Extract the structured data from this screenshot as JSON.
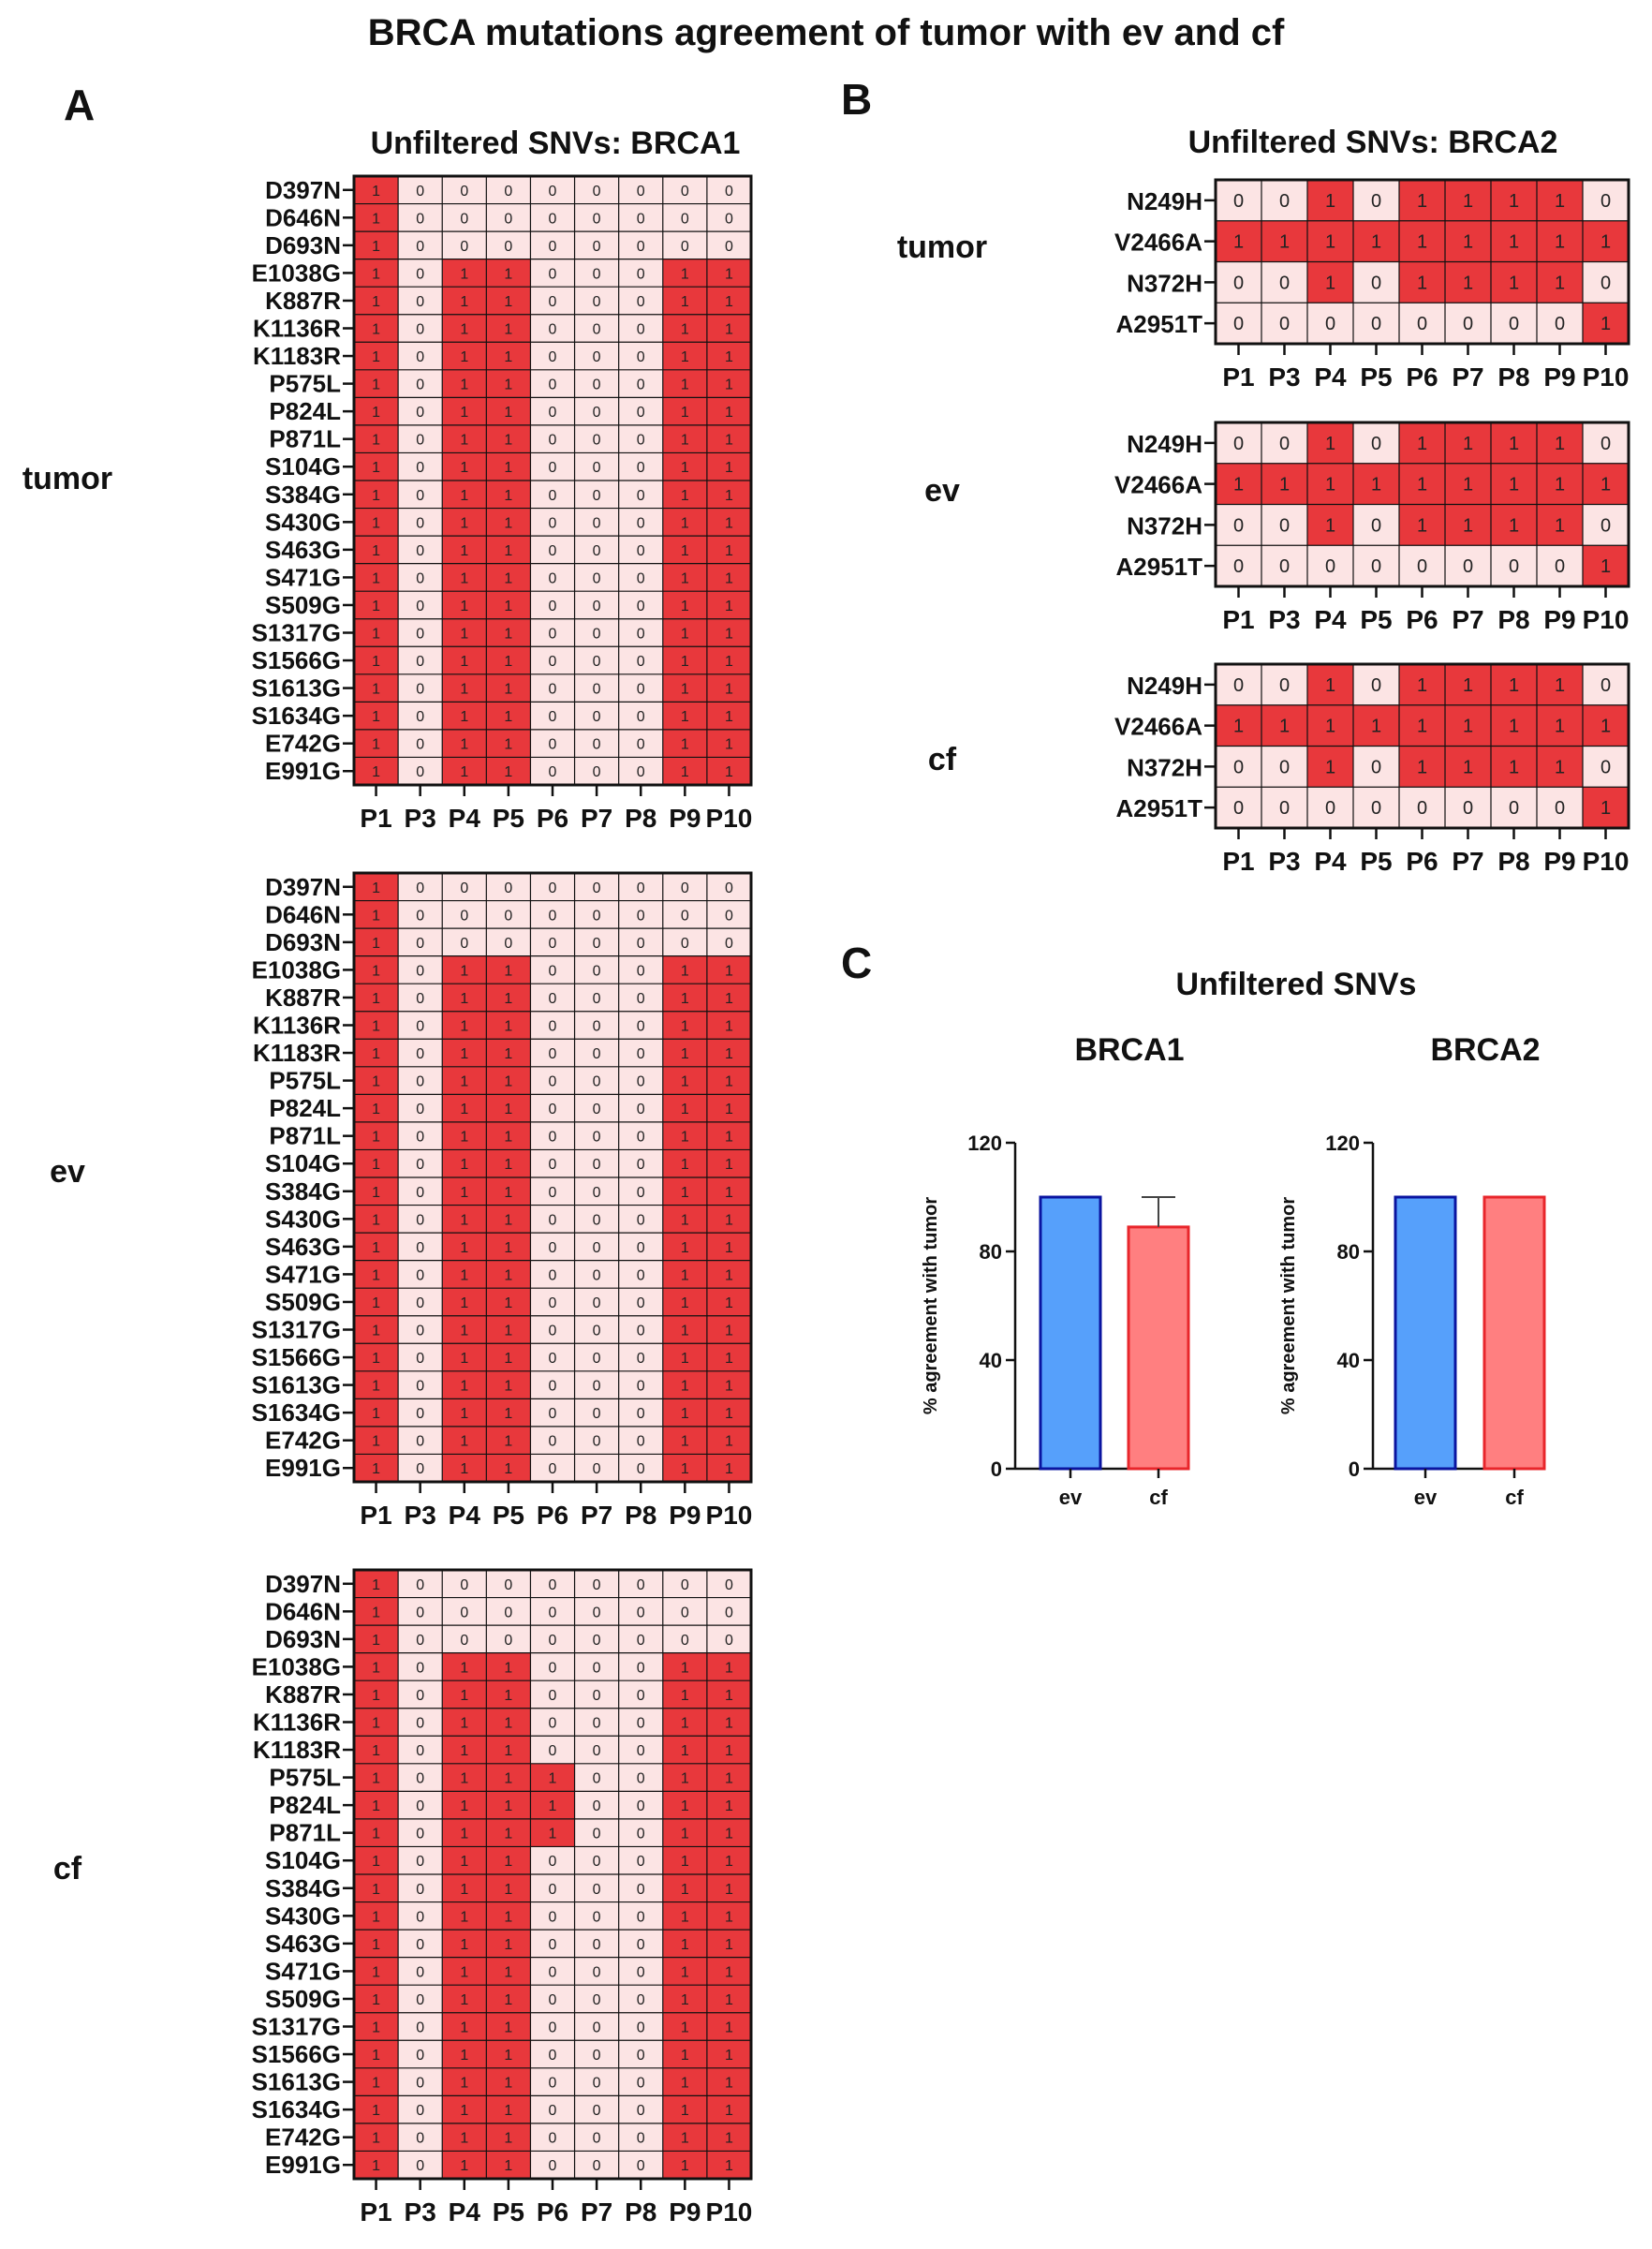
{
  "figure": {
    "title": "BRCA mutations agreement of tumor with ev and cf",
    "panel_labels": [
      "A",
      "B",
      "C"
    ],
    "group_labels": [
      "tumor",
      "ev",
      "cf"
    ]
  },
  "chart_data": [
    {
      "type": "heatmap",
      "panel": "A",
      "title": "Unfiltered SNVs: BRCA1",
      "groups": [
        "tumor",
        "ev",
        "cf"
      ],
      "rows": [
        "D397N",
        "D646N",
        "D693N",
        "E1038G",
        "K887R",
        "K1136R",
        "K1183R",
        "P575L",
        "P824L",
        "P871L",
        "S104G",
        "S384G",
        "S430G",
        "S463G",
        "S471G",
        "S509G",
        "S1317G",
        "S1566G",
        "S1613G",
        "S1634G",
        "E742G",
        "E991G"
      ],
      "columns": [
        "P1",
        "P3",
        "P4",
        "P5",
        "P6",
        "P7",
        "P8",
        "P9",
        "P10"
      ],
      "values": {
        "tumor": [
          [
            1,
            0,
            0,
            0,
            0,
            0,
            0,
            0,
            0
          ],
          [
            1,
            0,
            0,
            0,
            0,
            0,
            0,
            0,
            0
          ],
          [
            1,
            0,
            0,
            0,
            0,
            0,
            0,
            0,
            0
          ],
          [
            1,
            0,
            1,
            1,
            0,
            0,
            0,
            1,
            1
          ],
          [
            1,
            0,
            1,
            1,
            0,
            0,
            0,
            1,
            1
          ],
          [
            1,
            0,
            1,
            1,
            0,
            0,
            0,
            1,
            1
          ],
          [
            1,
            0,
            1,
            1,
            0,
            0,
            0,
            1,
            1
          ],
          [
            1,
            0,
            1,
            1,
            0,
            0,
            0,
            1,
            1
          ],
          [
            1,
            0,
            1,
            1,
            0,
            0,
            0,
            1,
            1
          ],
          [
            1,
            0,
            1,
            1,
            0,
            0,
            0,
            1,
            1
          ],
          [
            1,
            0,
            1,
            1,
            0,
            0,
            0,
            1,
            1
          ],
          [
            1,
            0,
            1,
            1,
            0,
            0,
            0,
            1,
            1
          ],
          [
            1,
            0,
            1,
            1,
            0,
            0,
            0,
            1,
            1
          ],
          [
            1,
            0,
            1,
            1,
            0,
            0,
            0,
            1,
            1
          ],
          [
            1,
            0,
            1,
            1,
            0,
            0,
            0,
            1,
            1
          ],
          [
            1,
            0,
            1,
            1,
            0,
            0,
            0,
            1,
            1
          ],
          [
            1,
            0,
            1,
            1,
            0,
            0,
            0,
            1,
            1
          ],
          [
            1,
            0,
            1,
            1,
            0,
            0,
            0,
            1,
            1
          ],
          [
            1,
            0,
            1,
            1,
            0,
            0,
            0,
            1,
            1
          ],
          [
            1,
            0,
            1,
            1,
            0,
            0,
            0,
            1,
            1
          ],
          [
            1,
            0,
            1,
            1,
            0,
            0,
            0,
            1,
            1
          ],
          [
            1,
            0,
            1,
            1,
            0,
            0,
            0,
            1,
            1
          ]
        ],
        "ev": [
          [
            1,
            0,
            0,
            0,
            0,
            0,
            0,
            0,
            0
          ],
          [
            1,
            0,
            0,
            0,
            0,
            0,
            0,
            0,
            0
          ],
          [
            1,
            0,
            0,
            0,
            0,
            0,
            0,
            0,
            0
          ],
          [
            1,
            0,
            1,
            1,
            0,
            0,
            0,
            1,
            1
          ],
          [
            1,
            0,
            1,
            1,
            0,
            0,
            0,
            1,
            1
          ],
          [
            1,
            0,
            1,
            1,
            0,
            0,
            0,
            1,
            1
          ],
          [
            1,
            0,
            1,
            1,
            0,
            0,
            0,
            1,
            1
          ],
          [
            1,
            0,
            1,
            1,
            0,
            0,
            0,
            1,
            1
          ],
          [
            1,
            0,
            1,
            1,
            0,
            0,
            0,
            1,
            1
          ],
          [
            1,
            0,
            1,
            1,
            0,
            0,
            0,
            1,
            1
          ],
          [
            1,
            0,
            1,
            1,
            0,
            0,
            0,
            1,
            1
          ],
          [
            1,
            0,
            1,
            1,
            0,
            0,
            0,
            1,
            1
          ],
          [
            1,
            0,
            1,
            1,
            0,
            0,
            0,
            1,
            1
          ],
          [
            1,
            0,
            1,
            1,
            0,
            0,
            0,
            1,
            1
          ],
          [
            1,
            0,
            1,
            1,
            0,
            0,
            0,
            1,
            1
          ],
          [
            1,
            0,
            1,
            1,
            0,
            0,
            0,
            1,
            1
          ],
          [
            1,
            0,
            1,
            1,
            0,
            0,
            0,
            1,
            1
          ],
          [
            1,
            0,
            1,
            1,
            0,
            0,
            0,
            1,
            1
          ],
          [
            1,
            0,
            1,
            1,
            0,
            0,
            0,
            1,
            1
          ],
          [
            1,
            0,
            1,
            1,
            0,
            0,
            0,
            1,
            1
          ],
          [
            1,
            0,
            1,
            1,
            0,
            0,
            0,
            1,
            1
          ],
          [
            1,
            0,
            1,
            1,
            0,
            0,
            0,
            1,
            1
          ]
        ],
        "cf": [
          [
            1,
            0,
            0,
            0,
            0,
            0,
            0,
            0,
            0
          ],
          [
            1,
            0,
            0,
            0,
            0,
            0,
            0,
            0,
            0
          ],
          [
            1,
            0,
            0,
            0,
            0,
            0,
            0,
            0,
            0
          ],
          [
            1,
            0,
            1,
            1,
            0,
            0,
            0,
            1,
            1
          ],
          [
            1,
            0,
            1,
            1,
            0,
            0,
            0,
            1,
            1
          ],
          [
            1,
            0,
            1,
            1,
            0,
            0,
            0,
            1,
            1
          ],
          [
            1,
            0,
            1,
            1,
            0,
            0,
            0,
            1,
            1
          ],
          [
            1,
            0,
            1,
            1,
            1,
            0,
            0,
            1,
            1
          ],
          [
            1,
            0,
            1,
            1,
            1,
            0,
            0,
            1,
            1
          ],
          [
            1,
            0,
            1,
            1,
            1,
            0,
            0,
            1,
            1
          ],
          [
            1,
            0,
            1,
            1,
            0,
            0,
            0,
            1,
            1
          ],
          [
            1,
            0,
            1,
            1,
            0,
            0,
            0,
            1,
            1
          ],
          [
            1,
            0,
            1,
            1,
            0,
            0,
            0,
            1,
            1
          ],
          [
            1,
            0,
            1,
            1,
            0,
            0,
            0,
            1,
            1
          ],
          [
            1,
            0,
            1,
            1,
            0,
            0,
            0,
            1,
            1
          ],
          [
            1,
            0,
            1,
            1,
            0,
            0,
            0,
            1,
            1
          ],
          [
            1,
            0,
            1,
            1,
            0,
            0,
            0,
            1,
            1
          ],
          [
            1,
            0,
            1,
            1,
            0,
            0,
            0,
            1,
            1
          ],
          [
            1,
            0,
            1,
            1,
            0,
            0,
            0,
            1,
            1
          ],
          [
            1,
            0,
            1,
            1,
            0,
            0,
            0,
            1,
            1
          ],
          [
            1,
            0,
            1,
            1,
            0,
            0,
            0,
            1,
            1
          ],
          [
            1,
            0,
            1,
            1,
            0,
            0,
            0,
            1,
            1
          ]
        ]
      },
      "colors": {
        "one": "#e8383c",
        "zero": "#fce4e4"
      }
    },
    {
      "type": "heatmap",
      "panel": "B",
      "title": "Unfiltered SNVs: BRCA2",
      "groups": [
        "tumor",
        "ev",
        "cf"
      ],
      "rows": [
        "N249H",
        "V2466A",
        "N372H",
        "A2951T"
      ],
      "columns": [
        "P1",
        "P3",
        "P4",
        "P5",
        "P6",
        "P7",
        "P8",
        "P9",
        "P10"
      ],
      "values": {
        "tumor": [
          [
            0,
            0,
            1,
            0,
            1,
            1,
            1,
            1,
            0
          ],
          [
            1,
            1,
            1,
            1,
            1,
            1,
            1,
            1,
            1
          ],
          [
            0,
            0,
            1,
            0,
            1,
            1,
            1,
            1,
            0
          ],
          [
            0,
            0,
            0,
            0,
            0,
            0,
            0,
            0,
            1
          ]
        ],
        "ev": [
          [
            0,
            0,
            1,
            0,
            1,
            1,
            1,
            1,
            0
          ],
          [
            1,
            1,
            1,
            1,
            1,
            1,
            1,
            1,
            1
          ],
          [
            0,
            0,
            1,
            0,
            1,
            1,
            1,
            1,
            0
          ],
          [
            0,
            0,
            0,
            0,
            0,
            0,
            0,
            0,
            1
          ]
        ],
        "cf": [
          [
            0,
            0,
            1,
            0,
            1,
            1,
            1,
            1,
            0
          ],
          [
            1,
            1,
            1,
            1,
            1,
            1,
            1,
            1,
            1
          ],
          [
            0,
            0,
            1,
            0,
            1,
            1,
            1,
            1,
            0
          ],
          [
            0,
            0,
            0,
            0,
            0,
            0,
            0,
            0,
            1
          ]
        ]
      },
      "colors": {
        "one": "#e8383c",
        "zero": "#fce4e4"
      }
    },
    {
      "type": "bar",
      "panel": "C",
      "suptitle": "Unfiltered SNVs",
      "title": "BRCA1",
      "categories": [
        "ev",
        "cf"
      ],
      "values": [
        100,
        89
      ],
      "error_upper": [
        0,
        11
      ],
      "ylabel": "% agreement with tumor",
      "ylim": [
        0,
        120
      ],
      "yticks": [
        0,
        40,
        80,
        120
      ],
      "fill_colors": [
        "#56a0fb",
        "#ff7f80"
      ],
      "edge_colors": [
        "#0a14a0",
        "#e8262b"
      ]
    },
    {
      "type": "bar",
      "panel": "C",
      "title": "BRCA2",
      "categories": [
        "ev",
        "cf"
      ],
      "values": [
        100,
        100
      ],
      "error_upper": [
        0,
        0
      ],
      "ylabel": "% agreement with tumor",
      "ylim": [
        0,
        120
      ],
      "yticks": [
        0,
        40,
        80,
        120
      ],
      "fill_colors": [
        "#56a0fb",
        "#ff7f80"
      ],
      "edge_colors": [
        "#0a14a0",
        "#e8262b"
      ]
    }
  ]
}
